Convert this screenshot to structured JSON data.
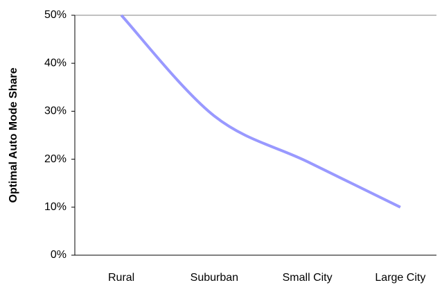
{
  "chart_data": {
    "type": "line",
    "y_label": "Optimal Auto Mode Share",
    "categories": [
      "Rural",
      "Suburban",
      "Small City",
      "Large City"
    ],
    "series": [
      {
        "name": "Optimal Auto Mode Share",
        "color": "#9999ff",
        "values": [
          50,
          29,
          19.5,
          10
        ]
      }
    ],
    "ylim": [
      0,
      50
    ],
    "yticks": [
      {
        "value": 0,
        "label": "0%"
      },
      {
        "value": 10,
        "label": "10%"
      },
      {
        "value": 20,
        "label": "20%"
      },
      {
        "value": 30,
        "label": "30%"
      },
      {
        "value": 40,
        "label": "40%"
      },
      {
        "value": 50,
        "label": "50%"
      }
    ],
    "grid": false
  }
}
